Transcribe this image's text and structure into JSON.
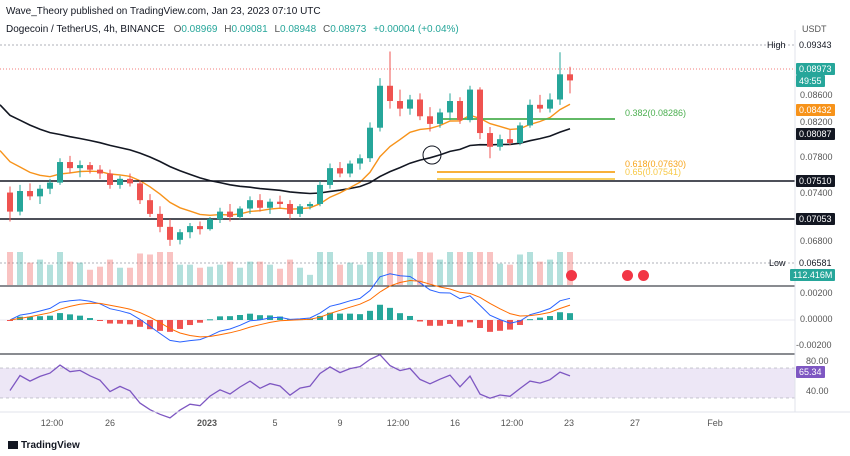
{
  "header": {
    "publisher": "Wave_Theory published on TradingView.com, Jan 23, 2023 07:10 UTC",
    "symbol": "Dogecoin / TetherUS, 4h, BINANCE",
    "ohlc_o": "O",
    "ohlc_o_val": "0.08969",
    "ohlc_h": "H",
    "ohlc_h_val": "0.09081",
    "ohlc_l": "L",
    "ohlc_l_val": "0.08948",
    "ohlc_c": "C",
    "ohlc_c_val": "0.08973",
    "change": "+0.00004 (+0.04%)",
    "currency": "USDT"
  },
  "price_tags": {
    "high_label": "High",
    "high_value": "0.09343",
    "last_value": "0.08973",
    "countdown": "49:55",
    "ema50_value": "0.08432",
    "ema200_value": "0.08087",
    "support1_value": "0.07510",
    "support2_value": "0.07053",
    "low_label": "Low",
    "low_value": "0.06581",
    "volume_value": "112.416M",
    "macd_value": "0.00200",
    "macd_zero": "0.00000",
    "macd_neg": "-0.00200",
    "rsi_top": "80.00",
    "rsi_value": "65.34",
    "rsi_bottom": "40.00"
  },
  "price_axis": [
    "0.08600",
    "0.08200",
    "0.07800",
    "0.07400",
    "0.06800"
  ],
  "fib_levels": [
    {
      "label": "0.382(0.08286)",
      "color": "#4caf50"
    },
    {
      "label": "0.618(0.07630)",
      "color": "#f7a51d"
    },
    {
      "label": "0.65(0.07541)",
      "color": "#f7c948"
    }
  ],
  "time_axis": [
    "12:00",
    "26",
    "2023",
    "5",
    "9",
    "12:00",
    "16",
    "12:00",
    "23",
    "27",
    "Feb"
  ],
  "footer": {
    "brand": "TradingView"
  },
  "colors": {
    "up": "#26a69a",
    "down": "#ef5350",
    "ema50": "#f7931a",
    "ema200": "#131722",
    "fib382": "#4caf50",
    "fib618": "#f7a51d",
    "macd": "#2962ff",
    "signal": "#ff6d00",
    "rsi": "#7e57c2"
  },
  "chart_data": {
    "type": "candlestick",
    "timeframe": "4h",
    "pair": "DOGE/USDT",
    "candles_ohlc": [
      [
        0.075,
        0.0758,
        0.0712,
        0.0725
      ],
      [
        0.0725,
        0.076,
        0.072,
        0.0752
      ],
      [
        0.0752,
        0.0762,
        0.074,
        0.0745
      ],
      [
        0.0745,
        0.076,
        0.0735,
        0.0755
      ],
      [
        0.0755,
        0.0768,
        0.0748,
        0.0763
      ],
      [
        0.0763,
        0.0795,
        0.076,
        0.079
      ],
      [
        0.079,
        0.0798,
        0.0775,
        0.0782
      ],
      [
        0.0782,
        0.0792,
        0.077,
        0.0786
      ],
      [
        0.0786,
        0.079,
        0.0775,
        0.078
      ],
      [
        0.078,
        0.0786,
        0.0768,
        0.0775
      ],
      [
        0.0775,
        0.078,
        0.0755,
        0.076
      ],
      [
        0.076,
        0.0772,
        0.0755,
        0.0768
      ],
      [
        0.0768,
        0.0775,
        0.0758,
        0.0762
      ],
      [
        0.0762,
        0.0766,
        0.0735,
        0.074
      ],
      [
        0.074,
        0.0748,
        0.0718,
        0.0722
      ],
      [
        0.0722,
        0.0732,
        0.0698,
        0.0705
      ],
      [
        0.0705,
        0.0715,
        0.068,
        0.0688
      ],
      [
        0.0688,
        0.0702,
        0.0682,
        0.0698
      ],
      [
        0.0698,
        0.071,
        0.069,
        0.0706
      ],
      [
        0.0706,
        0.0712,
        0.0695,
        0.0702
      ],
      [
        0.0702,
        0.0718,
        0.07,
        0.0715
      ],
      [
        0.0715,
        0.073,
        0.071,
        0.0725
      ],
      [
        0.0725,
        0.0735,
        0.0712,
        0.0718
      ],
      [
        0.0718,
        0.0732,
        0.0715,
        0.0729
      ],
      [
        0.0729,
        0.0745,
        0.0722,
        0.074
      ],
      [
        0.074,
        0.0748,
        0.0725,
        0.073
      ],
      [
        0.073,
        0.0742,
        0.0722,
        0.0738
      ],
      [
        0.0738,
        0.0746,
        0.073,
        0.0735
      ],
      [
        0.0735,
        0.074,
        0.0715,
        0.0722
      ],
      [
        0.0722,
        0.0735,
        0.0718,
        0.0732
      ],
      [
        0.0732,
        0.0738,
        0.0728,
        0.0735
      ],
      [
        0.0735,
        0.0765,
        0.0732,
        0.076
      ],
      [
        0.076,
        0.0788,
        0.0755,
        0.0782
      ],
      [
        0.0782,
        0.079,
        0.077,
        0.0775
      ],
      [
        0.0775,
        0.0792,
        0.077,
        0.0788
      ],
      [
        0.0788,
        0.08,
        0.078,
        0.0795
      ],
      [
        0.0795,
        0.0842,
        0.079,
        0.0835
      ],
      [
        0.0835,
        0.09,
        0.083,
        0.089
      ],
      [
        0.089,
        0.0935,
        0.086,
        0.087
      ],
      [
        0.087,
        0.0885,
        0.085,
        0.086
      ],
      [
        0.086,
        0.0878,
        0.0852,
        0.0872
      ],
      [
        0.0872,
        0.088,
        0.0845,
        0.085
      ],
      [
        0.085,
        0.0862,
        0.083,
        0.084
      ],
      [
        0.084,
        0.086,
        0.0835,
        0.0855
      ],
      [
        0.0855,
        0.088,
        0.0845,
        0.087
      ],
      [
        0.087,
        0.0875,
        0.084,
        0.0845
      ],
      [
        0.0845,
        0.089,
        0.0842,
        0.0885
      ],
      [
        0.0885,
        0.0888,
        0.082,
        0.0828
      ],
      [
        0.0828,
        0.0836,
        0.0795,
        0.081
      ],
      [
        0.081,
        0.0826,
        0.0805,
        0.082
      ],
      [
        0.082,
        0.0832,
        0.0812,
        0.0815
      ],
      [
        0.0815,
        0.0842,
        0.0812,
        0.0838
      ],
      [
        0.0838,
        0.0872,
        0.0835,
        0.0865
      ],
      [
        0.0865,
        0.0878,
        0.0855,
        0.086
      ],
      [
        0.086,
        0.088,
        0.0855,
        0.0872
      ],
      [
        0.0872,
        0.0934,
        0.0865,
        0.0905
      ],
      [
        0.0905,
        0.0915,
        0.088,
        0.0897
      ]
    ],
    "horizontal_levels": [
      0.0751,
      0.07053
    ],
    "fib_prices": [
      0.08286,
      0.0763,
      0.07541
    ],
    "y_range": [
      0.0655,
      0.095
    ],
    "macd_range": [
      -0.0025,
      0.0025
    ],
    "rsi_range": [
      30,
      85
    ]
  }
}
